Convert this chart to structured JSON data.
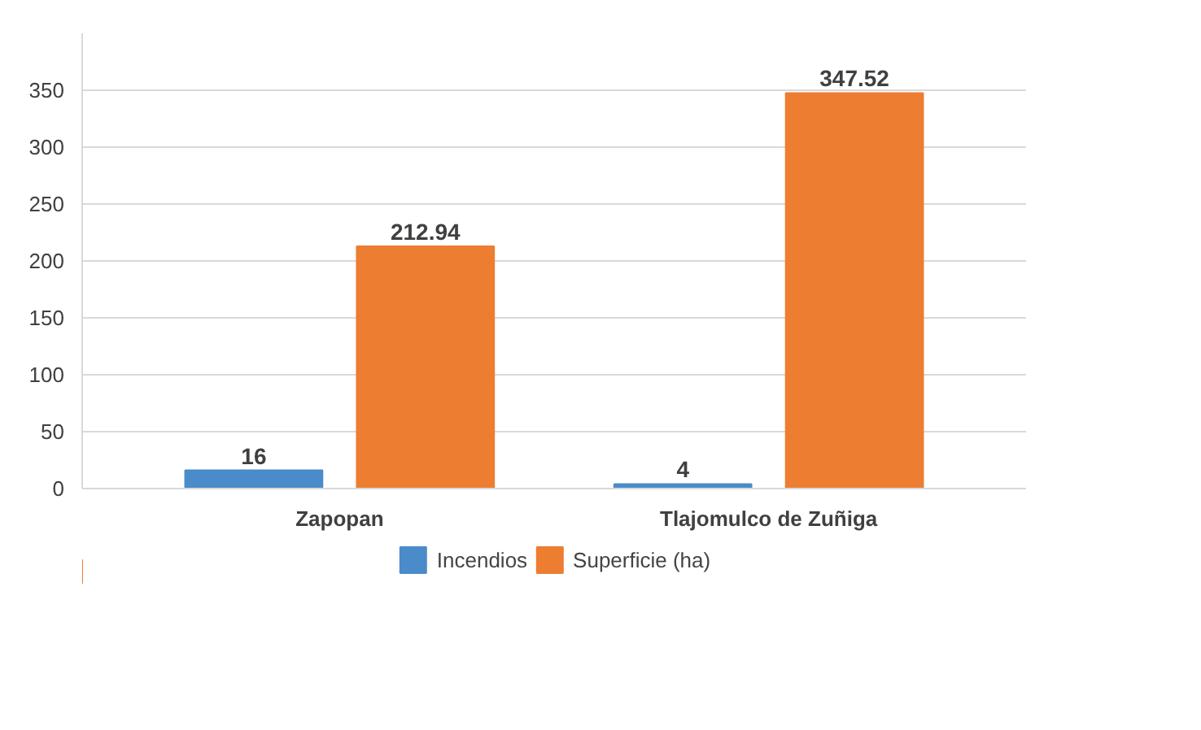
{
  "chart_data": {
    "type": "bar",
    "categories": [
      "Zapopan",
      "Tlajomulco de Zuñiga"
    ],
    "series": [
      {
        "name": "Incendios",
        "color": "#4a8bc9",
        "values": [
          16,
          4
        ]
      },
      {
        "name": "Superficie (ha)",
        "color": "#ed7d31",
        "values": [
          212.94,
          347.52
        ]
      }
    ],
    "ylim": [
      0,
      400
    ],
    "yticks": [
      0,
      50,
      100,
      150,
      200,
      250,
      300,
      350
    ],
    "grid": "y",
    "legend": "bottom",
    "data_labels": true
  }
}
